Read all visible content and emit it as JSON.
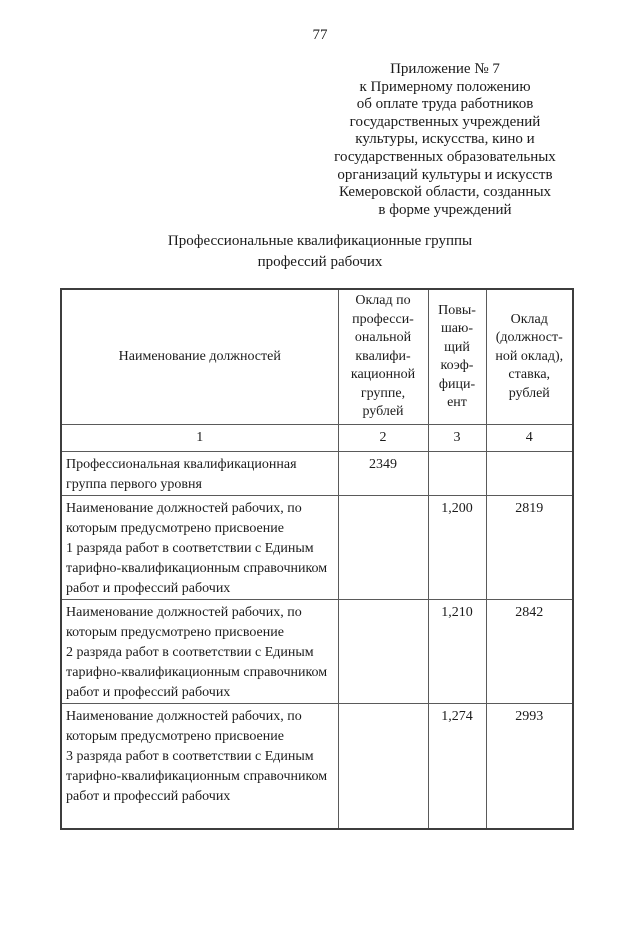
{
  "page_number": "77",
  "appendix": {
    "lines": [
      "Приложение № 7",
      "к Примерному положению",
      "об оплате труда работников",
      "государственных учреждений",
      "культуры, искусства, кино и",
      "государственных образовательных",
      "организаций культуры и искусств",
      "Кемеровской области, созданных",
      "в форме учреждений"
    ]
  },
  "doc_title": "Профессиональные квалификационные группы\nпрофессий рабочих",
  "table": {
    "header": {
      "col1": "Наименование должностей",
      "col2": "Оклад по\nпрофесси-\nональной\nквалифи-\nкационной\nгруппе,\nрублей",
      "col3": "Повы-\nшаю-\nщий\nкоэф-\nфици-\nент",
      "col4": "Оклад\n(должност-\nной оклад),\nставка,\nрублей"
    },
    "column_numbers": [
      "1",
      "2",
      "3",
      "4"
    ],
    "rows": [
      {
        "name": "Профессиональная квалификационная\nгруппа первого уровня",
        "pkg_salary": "2349",
        "coefficient": "",
        "salary": ""
      },
      {
        "name": "Наименование должностей рабочих, по\nкоторым предусмотрено присвоение\n1 разряда работ в соответствии с Единым\nтарифно-квалификационным справочником\nработ и профессий рабочих",
        "pkg_salary": "",
        "coefficient": "1,200",
        "salary": "2819"
      },
      {
        "name": "Наименование должностей рабочих, по\nкоторым предусмотрено присвоение\n2 разряда работ в соответствии с Единым\nтарифно-квалификационным справочником\nработ и профессий рабочих",
        "pkg_salary": "",
        "coefficient": "1,210",
        "salary": "2842"
      },
      {
        "name": "Наименование должностей рабочих, по\nкоторым предусмотрено присвоение\n3 разряда работ в соответствии с Единым\nтарифно-квалификационным справочником\nработ и профессий рабочих",
        "pkg_salary": "",
        "coefficient": "1,274",
        "salary": "2993"
      }
    ]
  }
}
